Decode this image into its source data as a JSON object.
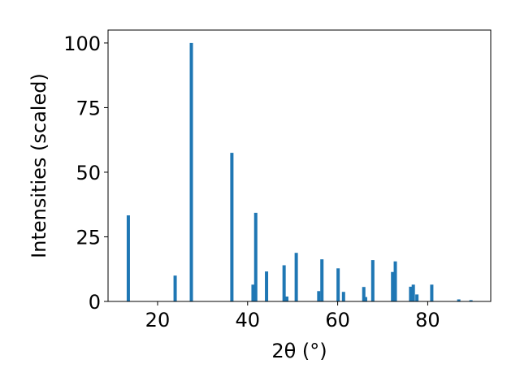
{
  "chart_data": {
    "type": "bar",
    "xlabel": "2θ (°)",
    "ylabel": "Intensities (scaled)",
    "xlim": [
      9.0,
      94.0
    ],
    "ylim": [
      0,
      105
    ],
    "xticks": [
      20,
      40,
      60,
      80
    ],
    "yticks": [
      0,
      25,
      50,
      75,
      100
    ],
    "grid": false,
    "bar_color": "#1f77b4",
    "series": [
      {
        "x": [
          13.5,
          23.9,
          27.5,
          36.5,
          41.2,
          41.8,
          44.2,
          48.1,
          48.7,
          50.8,
          55.8,
          56.5,
          60.1,
          61.3,
          65.8,
          66.2,
          67.8,
          72.2,
          72.8,
          76.2,
          76.8,
          77.6,
          80.9,
          86.9,
          89.6
        ],
        "y": [
          33.3,
          10.0,
          100.0,
          57.5,
          6.5,
          34.3,
          11.6,
          14.0,
          1.9,
          18.8,
          4.0,
          16.3,
          12.8,
          3.7,
          5.6,
          1.7,
          16.0,
          11.4,
          15.5,
          5.7,
          6.5,
          2.7,
          6.5,
          0.8,
          0.5
        ]
      }
    ]
  }
}
